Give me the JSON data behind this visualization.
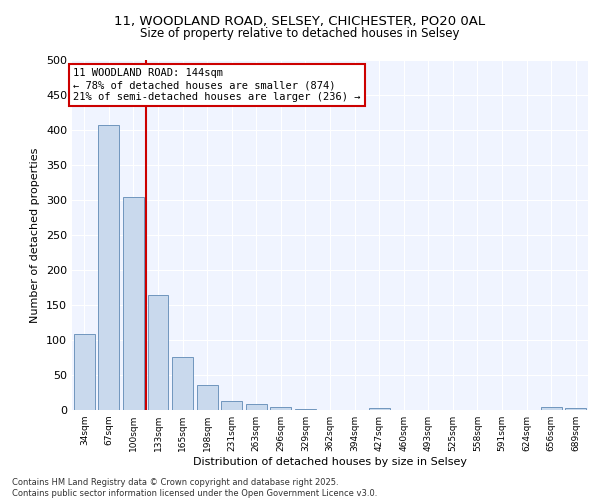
{
  "title_line1": "11, WOODLAND ROAD, SELSEY, CHICHESTER, PO20 0AL",
  "title_line2": "Size of property relative to detached houses in Selsey",
  "xlabel": "Distribution of detached houses by size in Selsey",
  "ylabel": "Number of detached properties",
  "categories": [
    "34sqm",
    "67sqm",
    "100sqm",
    "133sqm",
    "165sqm",
    "198sqm",
    "231sqm",
    "263sqm",
    "296sqm",
    "329sqm",
    "362sqm",
    "394sqm",
    "427sqm",
    "460sqm",
    "493sqm",
    "525sqm",
    "558sqm",
    "591sqm",
    "624sqm",
    "656sqm",
    "689sqm"
  ],
  "values": [
    108,
    407,
    305,
    165,
    76,
    36,
    13,
    9,
    5,
    2,
    0,
    0,
    3,
    0,
    0,
    0,
    0,
    0,
    0,
    5,
    3
  ],
  "bar_color": "#c9d9ed",
  "bar_edge_color": "#7096be",
  "property_line_x": 2.5,
  "annotation_text": "11 WOODLAND ROAD: 144sqm\n← 78% of detached houses are smaller (874)\n21% of semi-detached houses are larger (236) →",
  "annotation_box_color": "#cc0000",
  "ylim": [
    0,
    500
  ],
  "yticks": [
    0,
    50,
    100,
    150,
    200,
    250,
    300,
    350,
    400,
    450,
    500
  ],
  "footer_line1": "Contains HM Land Registry data © Crown copyright and database right 2025.",
  "footer_line2": "Contains public sector information licensed under the Open Government Licence v3.0.",
  "background_color": "#f0f4ff",
  "plot_bg_color": "#f0f4ff",
  "grid_color": "#ffffff"
}
